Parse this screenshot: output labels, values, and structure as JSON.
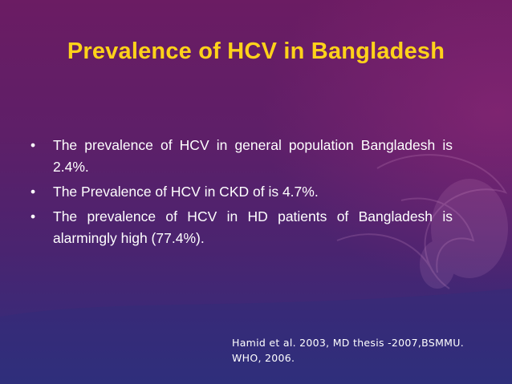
{
  "slide": {
    "title": "Prevalence of HCV in Bangladesh",
    "bullet_symbol": "•",
    "bullets": [
      "The prevalence of HCV in general population Bangladesh is 2.4%.",
      "The Prevalence of HCV in CKD of is 4.7%.",
      "The prevalence of HCV in HD patients of Bangladesh is alarmingly high (77.4%)."
    ],
    "citation": {
      "line1": "Hamid et al. 2003, MD thesis -2007,BSMMU.",
      "line2": "WHO, 2006."
    }
  },
  "colors": {
    "title": "#ffd21a",
    "text": "#ffffff",
    "background_top": "#6b1c63",
    "background_bottom": "#30307c"
  }
}
